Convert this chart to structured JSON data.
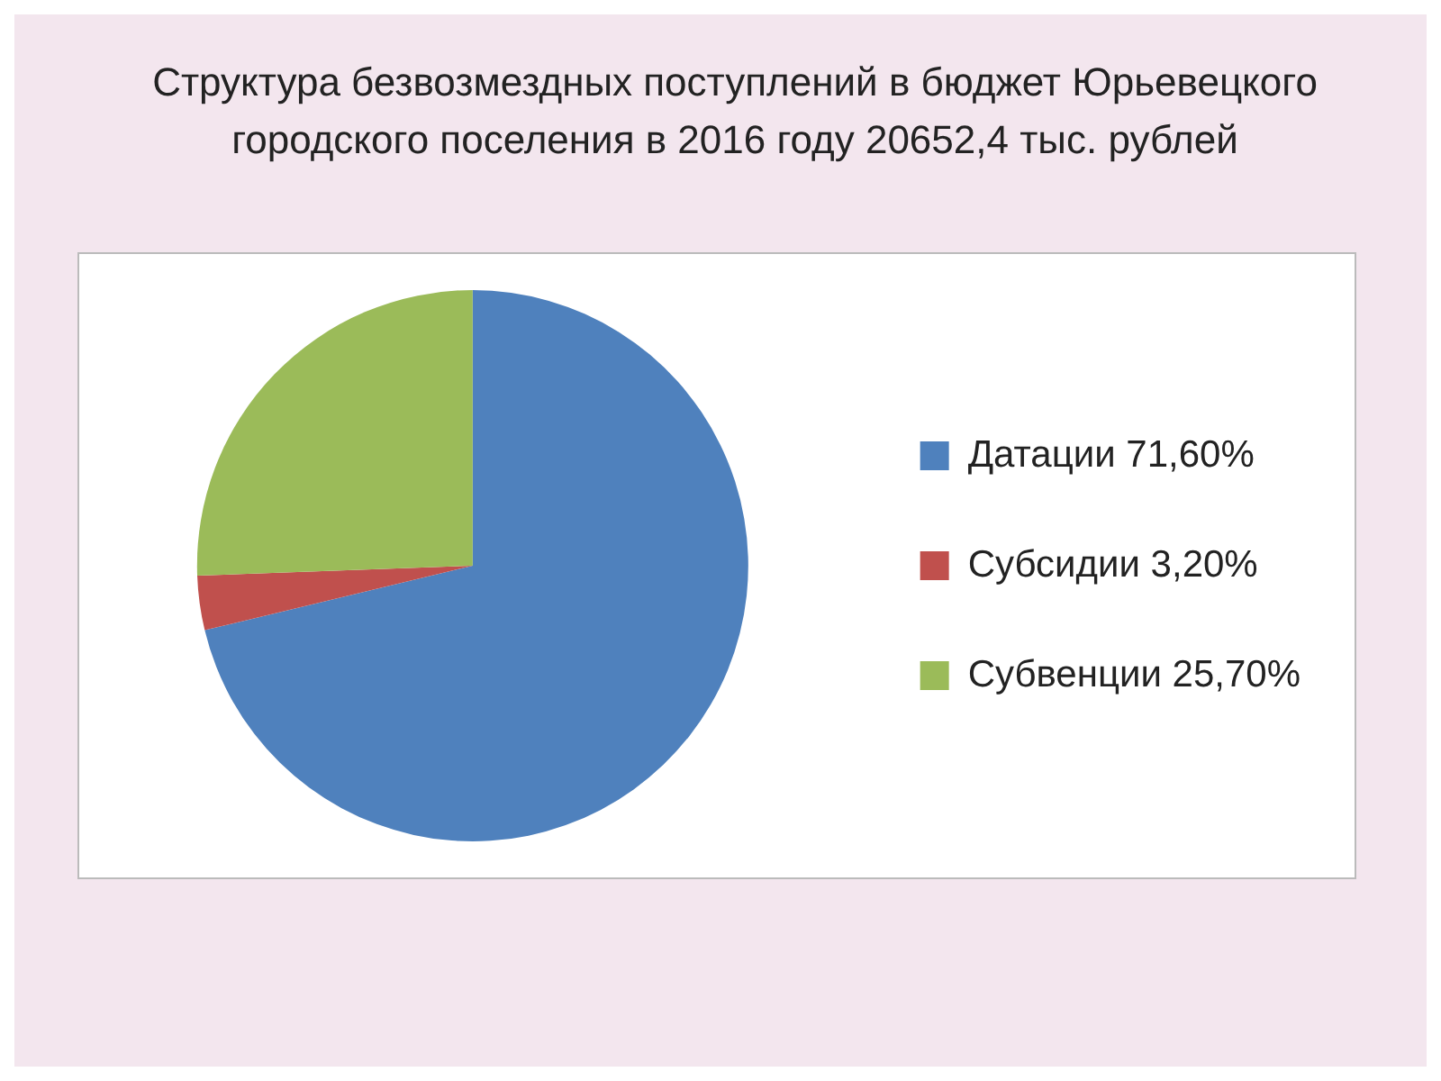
{
  "chart_data": {
    "type": "pie",
    "title": "Структура безвозмездных поступлений в  бюджет Юрьевецкого городского поселения в 2016 году 20652,4 тыс. рублей",
    "categories": [
      "Датации 71,60%",
      "Субсидии 3,20%",
      "Субвенции 25,70%"
    ],
    "values": [
      71.6,
      3.2,
      25.7
    ],
    "colors": [
      "#4f81bd",
      "#c0504d",
      "#9bbb59"
    ],
    "legend": "right"
  }
}
